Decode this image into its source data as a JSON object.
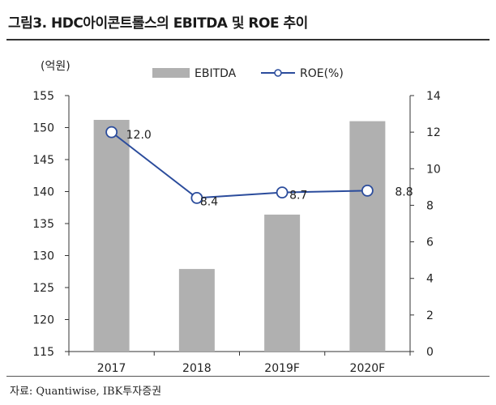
{
  "figure": {
    "title": "그림3. HDC아이콘트롤스의 EBITDA 및 ROE 추이",
    "source": "자료: Quantiwise, IBK투자증권"
  },
  "chart_data": {
    "type": "bar",
    "categories": [
      "2017",
      "2018",
      "2019F",
      "2020F"
    ],
    "left_unit": "(억원)",
    "series": [
      {
        "name": "EBITDA",
        "type": "bar",
        "axis": "left",
        "color": "#b0b0b0",
        "values": [
          151.2,
          127.9,
          136.4,
          151.0
        ]
      },
      {
        "name": "ROE(%)",
        "type": "line",
        "axis": "right",
        "color": "#2b4c9c",
        "values": [
          12.0,
          8.4,
          8.7,
          8.8
        ],
        "labels": [
          "12.0",
          "8.4",
          "8.7",
          "8.8"
        ]
      }
    ],
    "y_left": {
      "min": 115,
      "max": 155,
      "ticks": [
        "115",
        "120",
        "125",
        "130",
        "135",
        "140",
        "145",
        "150",
        "155"
      ]
    },
    "y_right": {
      "min": 0,
      "max": 14,
      "ticks": [
        "0",
        "2",
        "4",
        "6",
        "8",
        "10",
        "12",
        "14"
      ]
    },
    "legend_position": "top-center",
    "grid": false
  }
}
